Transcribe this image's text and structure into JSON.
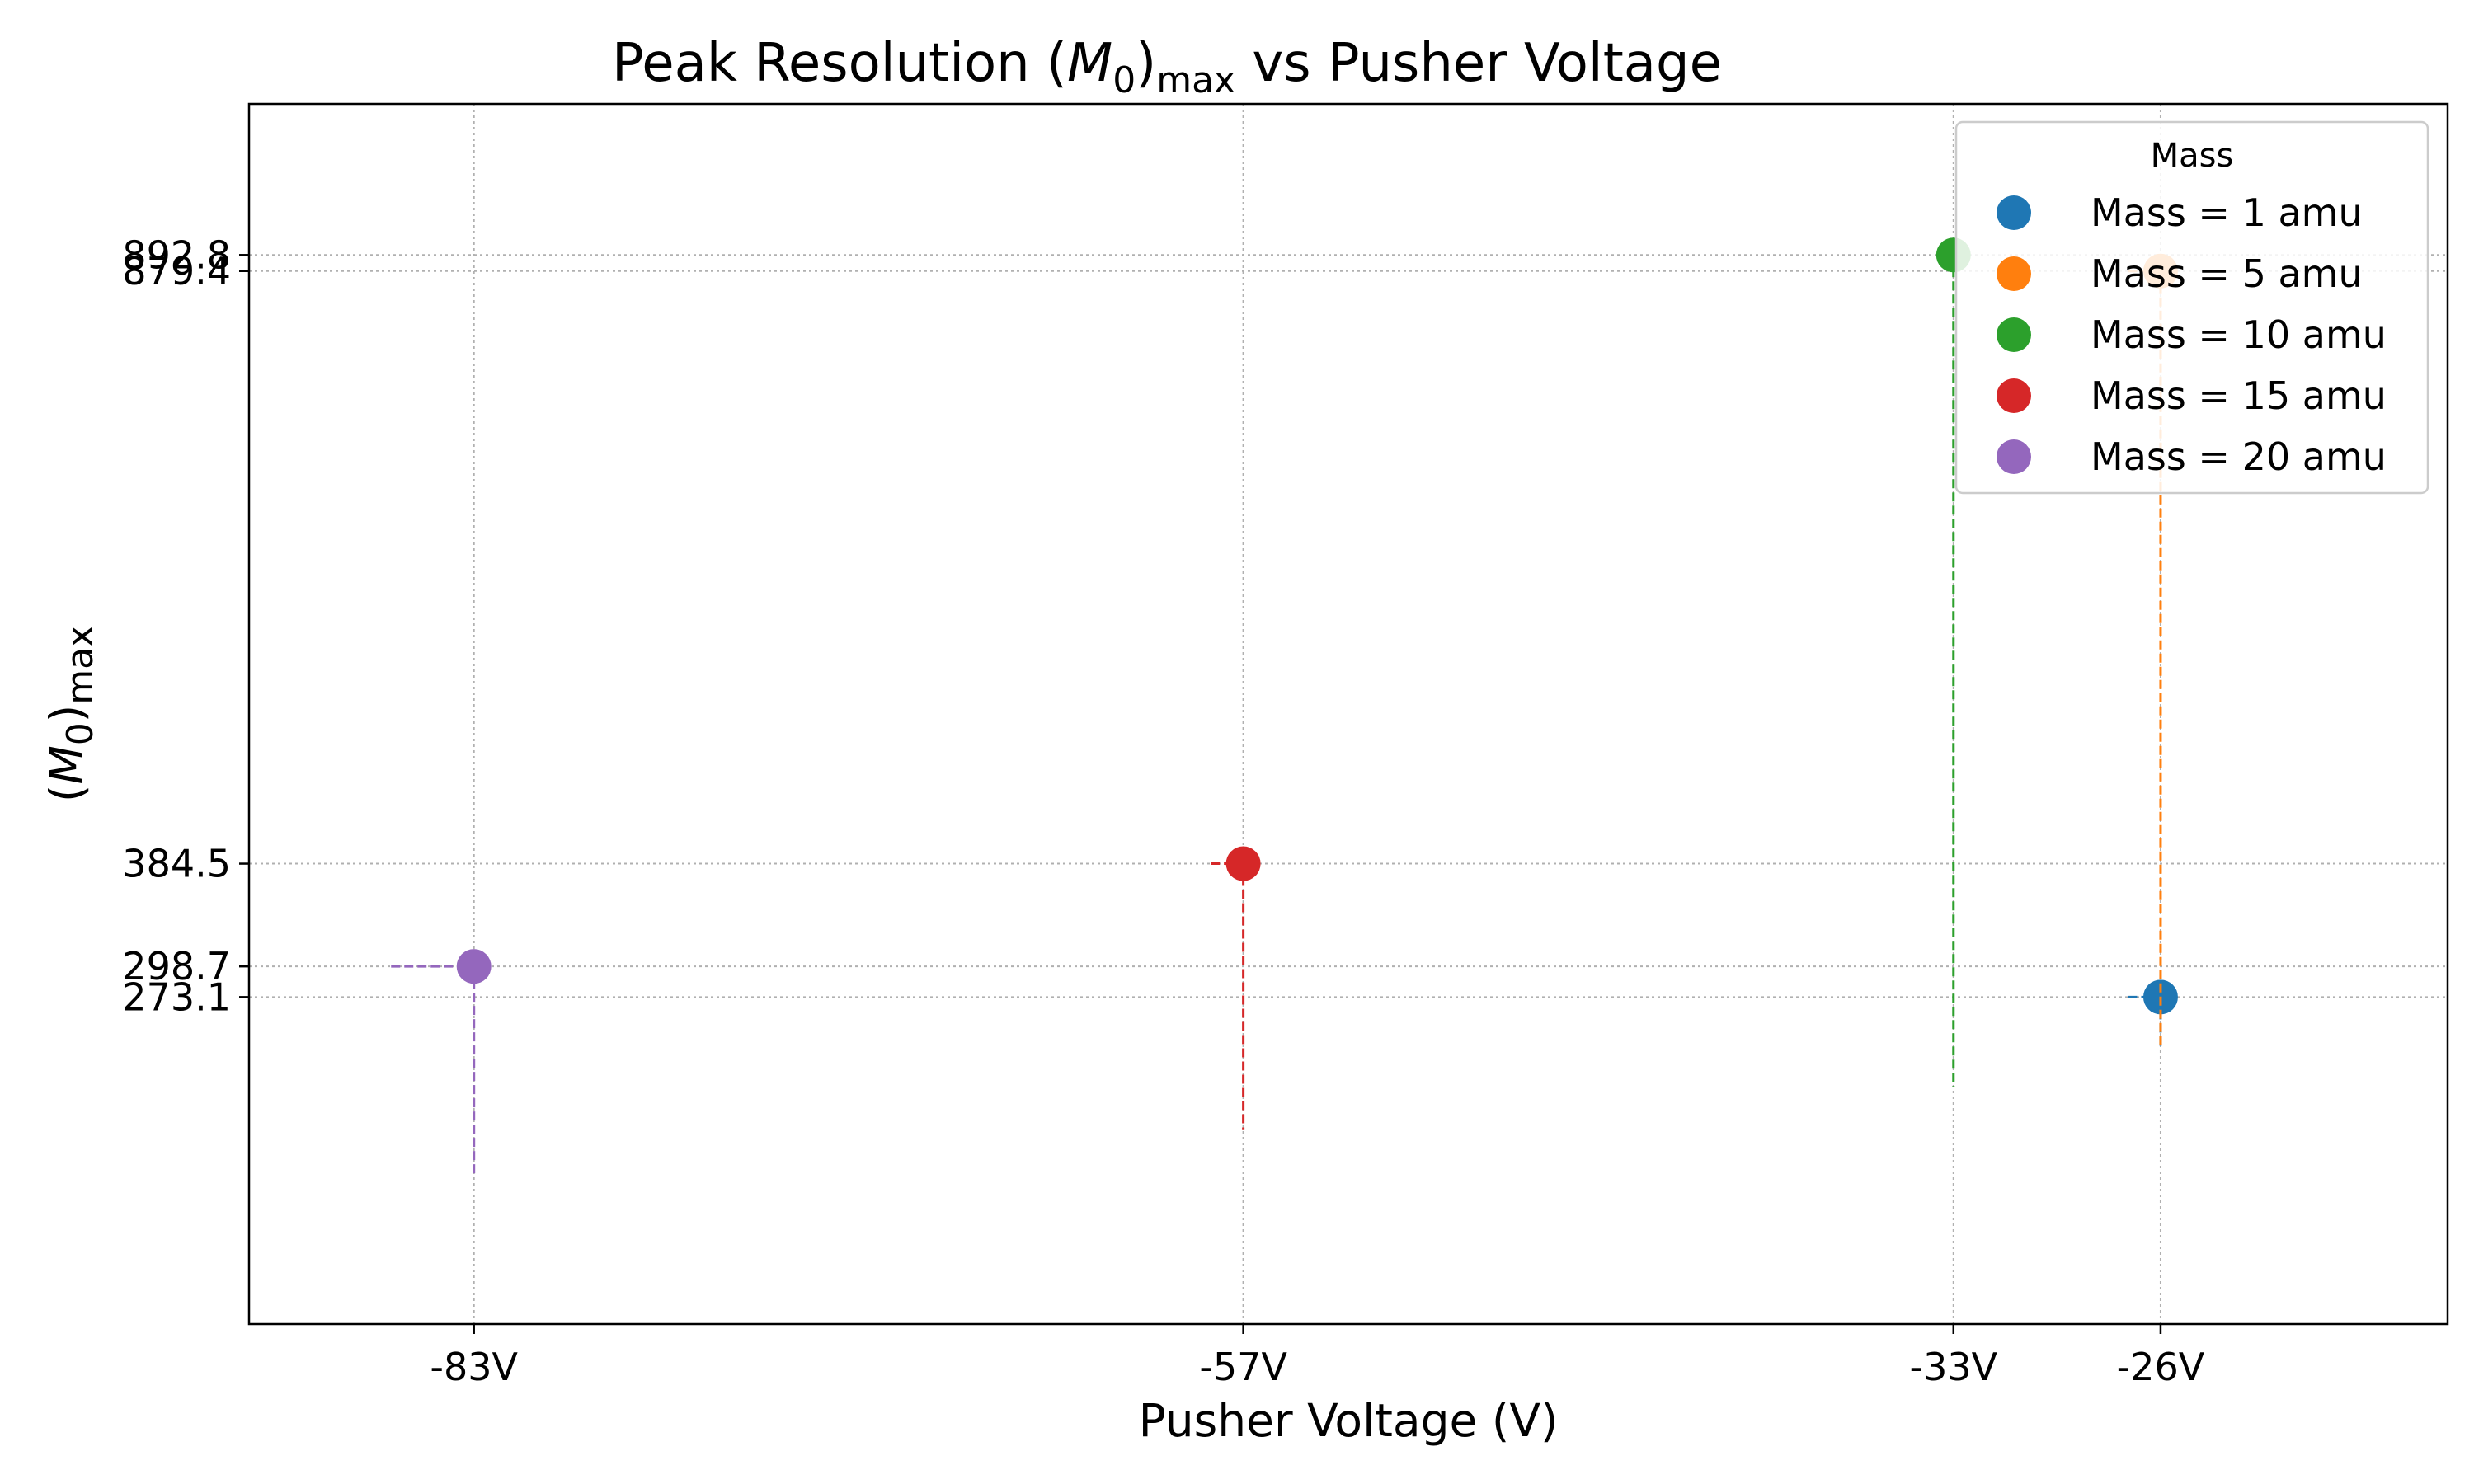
{
  "chart_data": {
    "type": "scatter",
    "title": "Peak Resolution (M0)max vs Pusher Voltage",
    "title_parts": {
      "prefix": "Peak Resolution (",
      "var": "M",
      "sub0": "0",
      "close": ")",
      "sub_max": "max",
      "suffix": " vs Pusher Voltage"
    },
    "xlabel": "Pusher Voltage (V)",
    "ylabel": "(M0)max",
    "ylabel_parts": {
      "open": "(",
      "var": "M",
      "sub0": "0",
      "close": ")",
      "sub_max": "max"
    },
    "xlim": [
      -90.6,
      -16.3
    ],
    "ylim": [
      0,
      1019
    ],
    "x_ticks": [
      {
        "value": -83,
        "label": "-83V"
      },
      {
        "value": -57,
        "label": "-57V"
      },
      {
        "value": -33,
        "label": "-33V"
      },
      {
        "value": -26,
        "label": "-26V"
      }
    ],
    "y_ticks": [
      {
        "value": 273.1,
        "label": "273.1"
      },
      {
        "value": 298.7,
        "label": "298.7"
      },
      {
        "value": 384.5,
        "label": "384.5"
      },
      {
        "value": 879.4,
        "label": "879.4"
      },
      {
        "value": 892.8,
        "label": "892.8"
      }
    ],
    "grid": true,
    "legend": {
      "title": "Mass",
      "placement": "top-right"
    },
    "series": [
      {
        "name": "Mass = 1 amu",
        "color": "#1f77b4",
        "x": -26,
        "y": 273.1,
        "y_low": 232,
        "x_left": -27.1
      },
      {
        "name": "Mass = 5 amu",
        "color": "#ff7f0e",
        "x": -26,
        "y": 879.4,
        "y_low": 232,
        "x_left": -27.1
      },
      {
        "name": "Mass = 10 amu",
        "color": "#2ca02c",
        "x": -33,
        "y": 892.8,
        "y_low": 198,
        "x_left": -33
      },
      {
        "name": "Mass = 15 amu",
        "color": "#d62728",
        "x": -57,
        "y": 384.5,
        "y_low": 162,
        "x_left": -58.1
      },
      {
        "name": "Mass = 20 amu",
        "color": "#9467bd",
        "x": -83,
        "y": 298.7,
        "y_low": 125,
        "x_left": -85.8
      }
    ]
  }
}
